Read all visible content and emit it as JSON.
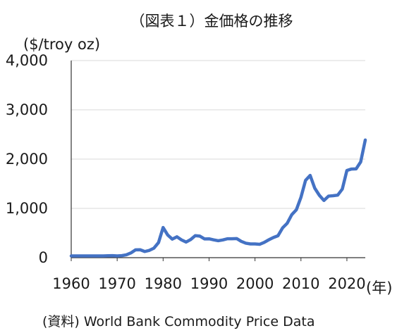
{
  "chart_data": {
    "type": "line",
    "title": "（図表１）金価格の推移",
    "ylabel": "($/troy oz)",
    "xlabel": "(年)",
    "source": "(資料) World Bank Commodity Price Data",
    "ylim": [
      0,
      4000
    ],
    "xlim": [
      1960,
      2024
    ],
    "yticks": [
      0,
      1000,
      2000,
      3000,
      4000
    ],
    "ytick_labels": [
      "0",
      "1,000",
      "2,000",
      "3,000",
      "4,000"
    ],
    "xticks": [
      1960,
      1970,
      1980,
      1990,
      2000,
      2010,
      2020
    ],
    "xtick_labels": [
      "1960",
      "1970",
      "1980",
      "1990",
      "2000",
      "2010",
      "2020"
    ],
    "grid": true,
    "line_color": "#4472c4",
    "series": [
      {
        "x": [
          1960,
          1961,
          1962,
          1963,
          1964,
          1965,
          1966,
          1967,
          1968,
          1969,
          1970,
          1971,
          1972,
          1973,
          1974,
          1975,
          1976,
          1977,
          1978,
          1979,
          1980,
          1981,
          1982,
          1983,
          1984,
          1985,
          1986,
          1987,
          1988,
          1989,
          1990,
          1991,
          1992,
          1993,
          1994,
          1995,
          1996,
          1997,
          1998,
          1999,
          2000,
          2001,
          2002,
          2003,
          2004,
          2005,
          2006,
          2007,
          2008,
          2009,
          2010,
          2011,
          2012,
          2013,
          2014,
          2015,
          2016,
          2017,
          2018,
          2019,
          2020,
          2021,
          2022,
          2023,
          2024
        ],
        "y": [
          35,
          35,
          35,
          35,
          35,
          35,
          35,
          35,
          39,
          41,
          36,
          41,
          58,
          97,
          159,
          161,
          125,
          148,
          193,
          306,
          612,
          460,
          376,
          424,
          361,
          317,
          368,
          447,
          437,
          381,
          383,
          362,
          344,
          360,
          384,
          384,
          388,
          331,
          294,
          279,
          279,
          271,
          310,
          363,
          409,
          445,
          604,
          697,
          872,
          972,
          1225,
          1569,
          1669,
          1411,
          1266,
          1160,
          1249,
          1257,
          1269,
          1392,
          1770,
          1799,
          1801,
          1943,
          2388
        ]
      }
    ]
  }
}
